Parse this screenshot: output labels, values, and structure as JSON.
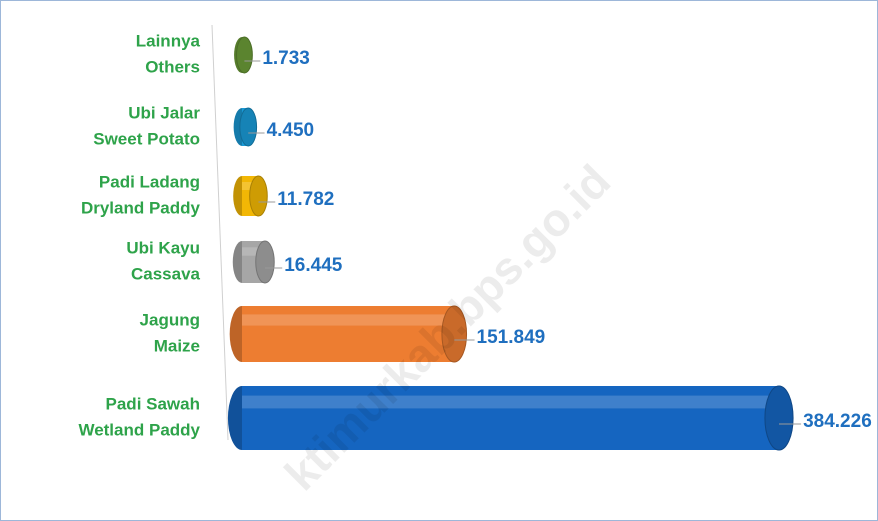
{
  "chart_data": {
    "type": "bar",
    "orientation": "horizontal",
    "categories": [
      [
        "Lainnya",
        "Others"
      ],
      [
        "Ubi Jalar",
        "Sweet Potato"
      ],
      [
        "Padi Ladang",
        "Dryland Paddy"
      ],
      [
        "Ubi Kayu",
        "Cassava"
      ],
      [
        "Jagung",
        "Maize"
      ],
      [
        "Padi Sawah",
        "Wetland Paddy"
      ]
    ],
    "values": [
      1733,
      4450,
      11782,
      16445,
      151849,
      384226
    ],
    "value_labels": [
      "1.733",
      "4.450",
      "11.782",
      "16.445",
      "151.849",
      "384.226"
    ],
    "colors": [
      "#6b9b37",
      "#1a9ad6",
      "#f2b705",
      "#a6a6a6",
      "#ed7d31",
      "#1565c0"
    ],
    "xlim": [
      0,
      384226
    ],
    "watermark": "ktimurkab.bps.go.id"
  }
}
